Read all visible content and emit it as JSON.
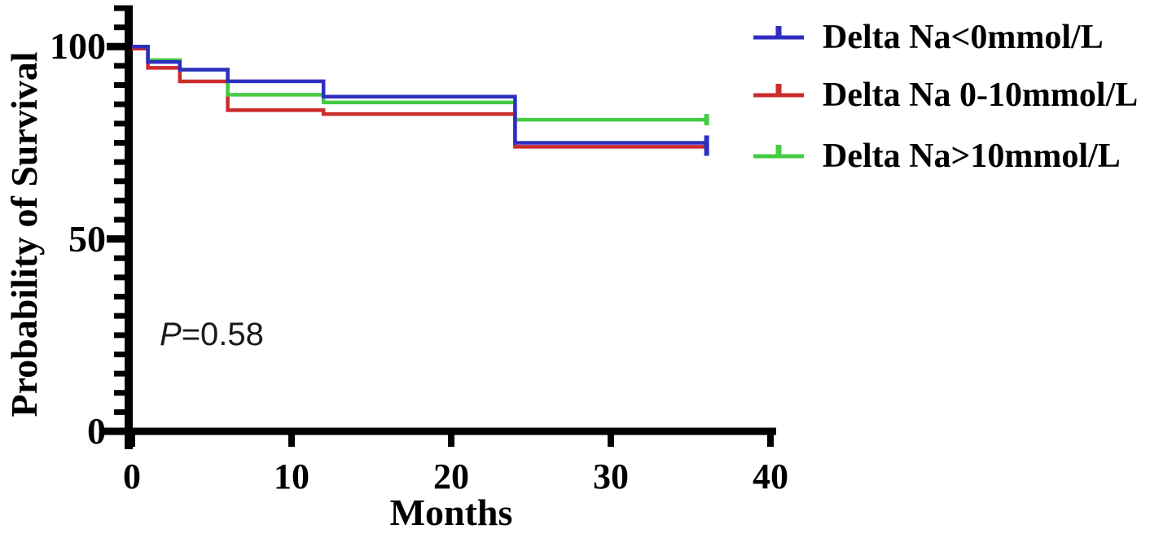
{
  "chart_data": {
    "type": "line",
    "subtype": "kaplan-meier-step-survival",
    "title": "",
    "xlabel": "Months",
    "ylabel": "Probability of Survival",
    "xlim": [
      0,
      40
    ],
    "ylim": [
      0,
      110
    ],
    "xticks": [
      0,
      10,
      20,
      30,
      40
    ],
    "yticks": [
      0,
      50,
      100
    ],
    "y_minor_tick_step": 5,
    "grid": "off",
    "legend_position": "top-right",
    "xtick_labels": [
      "0",
      "10",
      "20",
      "30",
      "40"
    ],
    "ytick_labels": [
      "100",
      "50",
      "0"
    ],
    "annotation": {
      "italic": "P",
      "text": "=0.58"
    },
    "axis_color": "#000000",
    "series": [
      {
        "name": "Delta Na<0mmol/L",
        "color": "#2E2EC0",
        "steps": [
          [
            0,
            100
          ],
          [
            1,
            96
          ],
          [
            3,
            94
          ],
          [
            6,
            91
          ],
          [
            12,
            87
          ],
          [
            24,
            75
          ],
          [
            36,
            75
          ]
        ],
        "censored_at_end": true
      },
      {
        "name": "Delta Na 0-10mmol/L",
        "color": "#CC2B2B",
        "steps": [
          [
            0,
            100
          ],
          [
            1,
            95
          ],
          [
            3,
            91.5
          ],
          [
            6,
            84
          ],
          [
            12,
            83
          ],
          [
            24,
            74.5
          ],
          [
            36,
            74.5
          ]
        ],
        "censored_at_end": true
      },
      {
        "name": "Delta Na>10mmol/L",
        "color": "#44CC44",
        "steps": [
          [
            0,
            100
          ],
          [
            1,
            96.5
          ],
          [
            3,
            94
          ],
          [
            6,
            87.5
          ],
          [
            12,
            85.5
          ],
          [
            24,
            81
          ],
          [
            36,
            81
          ]
        ],
        "censored_at_end": true
      }
    ]
  }
}
